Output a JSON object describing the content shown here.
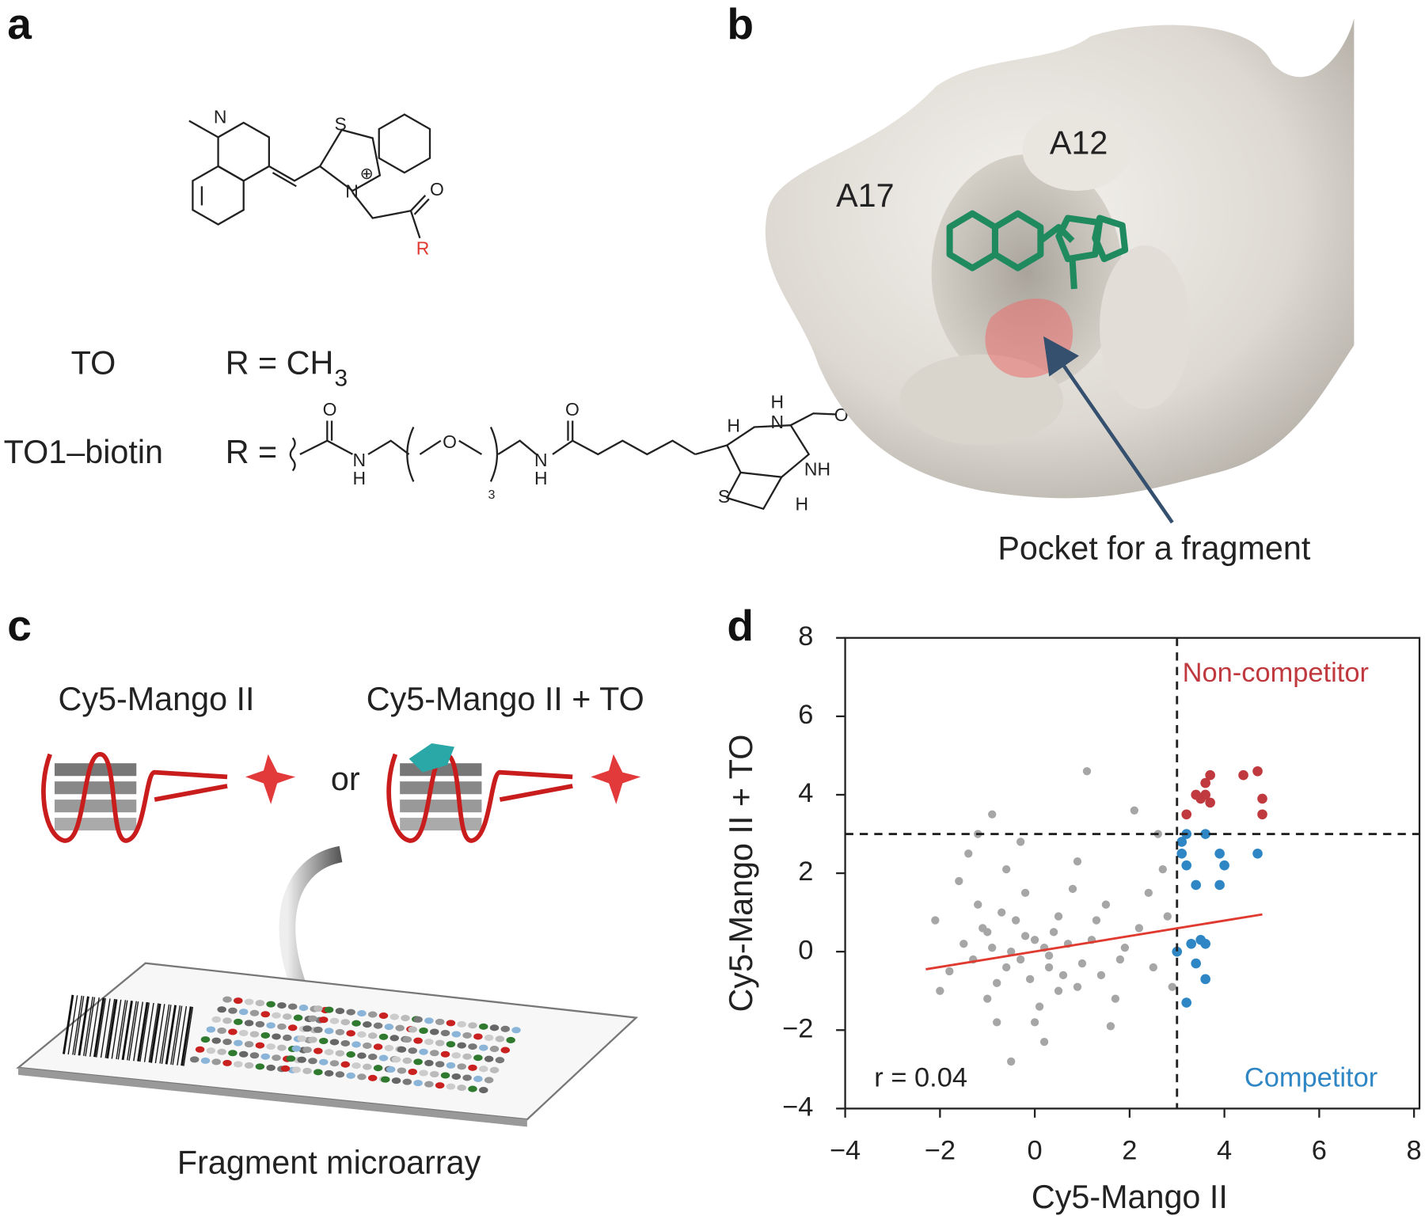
{
  "panel_a": {
    "label": "a",
    "atoms": [
      "N",
      "S",
      "N",
      "⊕",
      "O",
      "R"
    ],
    "rows": [
      {
        "name": "TO",
        "formula": "R = CH",
        "subscript": "3"
      },
      {
        "name": "TO1–biotin",
        "prefix": "R ="
      }
    ],
    "biotin_atoms": [
      "O",
      "N",
      "H",
      "O",
      "3",
      "N",
      "H",
      "O",
      "H",
      "N",
      "O",
      "H",
      "NH",
      "S",
      "H"
    ]
  },
  "panel_b": {
    "label": "b",
    "residues": [
      "A12",
      "A17"
    ],
    "callout": "Pocket for a fragment"
  },
  "panel_c": {
    "label": "c",
    "left": "Cy5-Mango II",
    "right": "Cy5-Mango II + TO",
    "or": "or",
    "caption": "Fragment microarray"
  },
  "panel_d_label": "d",
  "chart_data": {
    "type": "scatter",
    "x_label": "Cy5-Mango II",
    "y_label": "Cy5-Mango II + TO",
    "xlim": [
      -4,
      8
    ],
    "ylim": [
      -4,
      8
    ],
    "xticks": [
      {
        "value": -4,
        "label": "−4"
      },
      {
        "value": -2,
        "label": "−2"
      },
      0,
      2,
      4,
      6,
      8
    ],
    "yticks": [
      {
        "value": -4,
        "label": "−4"
      },
      {
        "value": -2,
        "label": "−2"
      },
      0,
      2,
      4,
      6,
      8
    ],
    "threshold_x": 3,
    "threshold_y": 3,
    "fit_line": {
      "x": [
        -2.3,
        4.8
      ],
      "y": [
        -0.45,
        0.95
      ],
      "color": "#e0392f"
    },
    "annotations": {
      "r": "r = 0.04",
      "non_competitor": "Non-competitor",
      "competitor": "Competitor"
    },
    "series": [
      {
        "color": "#a6a6a6",
        "x": [
          -0.5,
          -1,
          0.3,
          1.2,
          -0.8,
          0.5,
          -1.5,
          0.9,
          -0.2,
          1.8,
          -1.2,
          0.1,
          2.2,
          -0.6,
          0.7,
          -1.8,
          1.5,
          -0.3,
          0.4,
          -0.9,
          1.0,
          -0.4,
          0.2,
          -1.3,
          0.6,
          -0.1,
          1.4,
          -0.7,
          0.8,
          -1.0,
          2.5,
          2.8,
          -2.1,
          -0.9,
          1.1,
          2.1,
          -0.3,
          0.2,
          -0.5,
          1.6,
          -1.6,
          2.7,
          0.0,
          -0.2,
          0.3,
          -0.6,
          1.9,
          -1.1,
          0.5,
          1.3,
          -2.0,
          2.4,
          -1.4,
          0.9,
          -0.8,
          1.7,
          2.9,
          -1.2,
          0.0,
          2.6
        ],
        "values": [
          0,
          0.5,
          -0.4,
          0.3,
          -0.8,
          0.9,
          0.2,
          -0.9,
          1.5,
          -0.2,
          1.2,
          -1.4,
          0.6,
          2.1,
          0.2,
          -0.5,
          1.2,
          -0.2,
          0.5,
          0.1,
          -0.3,
          0.8,
          0.1,
          -0.2,
          -0.6,
          -0.7,
          -0.6,
          1.0,
          1.6,
          -1.2,
          -0.4,
          0.9,
          0.8,
          3.5,
          4.6,
          3.6,
          2.8,
          -2.3,
          -2.8,
          -1.9,
          1.8,
          2.1,
          0.3,
          0.4,
          -0.1,
          -0.4,
          0.1,
          0.6,
          -1.0,
          0.8,
          -1.0,
          1.5,
          2.5,
          2.3,
          -1.8,
          -1.2,
          -0.9,
          3.0,
          -1.8,
          3.0
        ]
      },
      {
        "name": "Non-competitor",
        "color": "#c0393f",
        "x": [
          3.6,
          3.6,
          3.5,
          3.7,
          3.4,
          4.4,
          4.7,
          4.8,
          4.8,
          3.2,
          3.7
        ],
        "values": [
          4.0,
          4.3,
          3.9,
          4.5,
          4.0,
          4.5,
          4.6,
          3.9,
          3.5,
          3.5,
          3.8
        ]
      },
      {
        "name": "Competitor",
        "color": "#2f86c4",
        "x": [
          3.2,
          3.1,
          3.1,
          3.2,
          3.6,
          3.9,
          4.0,
          3.9,
          3.4,
          4.7,
          3.5,
          3.3,
          3.6,
          3.0,
          3.4,
          3.6,
          3.2
        ],
        "values": [
          3.0,
          2.8,
          2.5,
          2.2,
          3.0,
          2.5,
          2.2,
          1.7,
          1.7,
          2.5,
          0.3,
          0.2,
          0.2,
          0.0,
          -0.3,
          -0.7,
          -1.3
        ]
      }
    ]
  }
}
